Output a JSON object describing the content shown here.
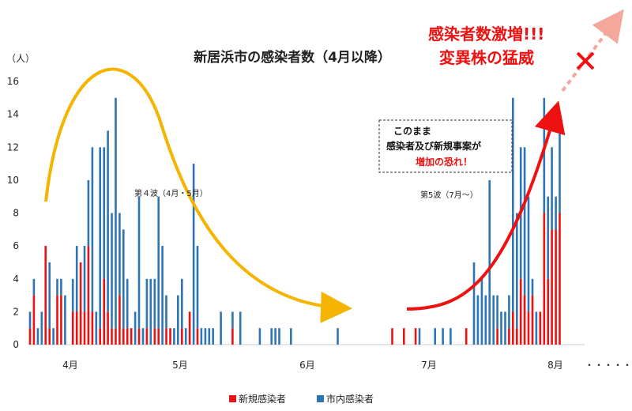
{
  "chart_data": {
    "type": "bar",
    "stacked": true,
    "title": "新居浜市の感染者数（4月以降）",
    "ylabel": "（人）",
    "ylim": [
      0,
      16
    ],
    "yticks": [
      0,
      2,
      4,
      6,
      8,
      10,
      12,
      14,
      16
    ],
    "xticks": [
      "4月",
      "5月",
      "6月",
      "7月",
      "8月"
    ],
    "x_trailing": "・・・・・",
    "grid": false,
    "legend_position": "bottom",
    "series": [
      {
        "name": "新規感染者",
        "color": "#ee1111"
      },
      {
        "name": "市内感染者",
        "color": "#2e75b6"
      }
    ],
    "bars": [
      {
        "x": "4/1",
        "new": 1,
        "city": 1
      },
      {
        "x": "4/2",
        "new": 3,
        "city": 1
      },
      {
        "x": "4/3",
        "new": 0,
        "city": 1
      },
      {
        "x": "4/4",
        "new": 0,
        "city": 2
      },
      {
        "x": "4/5",
        "new": 6,
        "city": 0
      },
      {
        "x": "4/6",
        "new": 1,
        "city": 4
      },
      {
        "x": "4/7",
        "new": 0,
        "city": 1
      },
      {
        "x": "4/8",
        "new": 3,
        "city": 1
      },
      {
        "x": "4/9",
        "new": 3,
        "city": 1
      },
      {
        "x": "4/10",
        "new": 0,
        "city": 3
      },
      {
        "x": "4/11",
        "new": 0,
        "city": 0
      },
      {
        "x": "4/12",
        "new": 2,
        "city": 2
      },
      {
        "x": "4/13",
        "new": 2,
        "city": 4
      },
      {
        "x": "4/14",
        "new": 5,
        "city": 0
      },
      {
        "x": "4/15",
        "new": 2,
        "city": 4
      },
      {
        "x": "4/16",
        "new": 6,
        "city": 4
      },
      {
        "x": "4/17",
        "new": 2,
        "city": 10
      },
      {
        "x": "4/18",
        "new": 0,
        "city": 2
      },
      {
        "x": "4/19",
        "new": 1,
        "city": 11
      },
      {
        "x": "4/20",
        "new": 4,
        "city": 8
      },
      {
        "x": "4/21",
        "new": 2,
        "city": 11
      },
      {
        "x": "4/22",
        "new": 1,
        "city": 7
      },
      {
        "x": "4/23",
        "new": 1,
        "city": 14
      },
      {
        "x": "4/24",
        "new": 3,
        "city": 5
      },
      {
        "x": "4/25",
        "new": 1,
        "city": 6
      },
      {
        "x": "4/26",
        "new": 1,
        "city": 3
      },
      {
        "x": "4/27",
        "new": 1,
        "city": 0
      },
      {
        "x": "4/28",
        "new": 0,
        "city": 2
      },
      {
        "x": "4/29",
        "new": 1,
        "city": 8
      },
      {
        "x": "4/30",
        "new": 0,
        "city": 1
      },
      {
        "x": "5/1",
        "new": 1,
        "city": 3
      },
      {
        "x": "5/2",
        "new": 0,
        "city": 4
      },
      {
        "x": "5/3",
        "new": 1,
        "city": 3
      },
      {
        "x": "5/4",
        "new": 1,
        "city": 8
      },
      {
        "x": "5/5",
        "new": 0,
        "city": 6
      },
      {
        "x": "5/6",
        "new": 1,
        "city": 2
      },
      {
        "x": "5/7",
        "new": 1,
        "city": 0
      },
      {
        "x": "5/8",
        "new": 0,
        "city": 1
      },
      {
        "x": "5/9",
        "new": 0,
        "city": 3
      },
      {
        "x": "5/10",
        "new": 1,
        "city": 3
      },
      {
        "x": "5/11",
        "new": 0,
        "city": 1
      },
      {
        "x": "5/12",
        "new": 2,
        "city": 0
      },
      {
        "x": "5/13",
        "new": 0,
        "city": 11
      },
      {
        "x": "5/14",
        "new": 1,
        "city": 5
      },
      {
        "x": "5/15",
        "new": 0,
        "city": 1
      },
      {
        "x": "5/16",
        "new": 0,
        "city": 1
      },
      {
        "x": "5/17",
        "new": 0,
        "city": 1
      },
      {
        "x": "5/18",
        "new": 0,
        "city": 1
      },
      {
        "x": "5/19",
        "new": 0,
        "city": 0
      },
      {
        "x": "5/20",
        "new": 0,
        "city": 2
      },
      {
        "x": "5/21",
        "new": 0,
        "city": 0
      },
      {
        "x": "5/22",
        "new": 0,
        "city": 0
      },
      {
        "x": "5/23",
        "new": 1,
        "city": 1
      },
      {
        "x": "5/24",
        "new": 0,
        "city": 0
      },
      {
        "x": "5/25",
        "new": 0,
        "city": 2
      },
      {
        "x": "5/26",
        "new": 0,
        "city": 0
      },
      {
        "x": "5/27",
        "new": 0,
        "city": 0
      },
      {
        "x": "5/28",
        "new": 0,
        "city": 0
      },
      {
        "x": "5/29",
        "new": 0,
        "city": 0
      },
      {
        "x": "5/30",
        "new": 0,
        "city": 1
      },
      {
        "x": "5/31",
        "new": 0,
        "city": 0
      },
      {
        "x": "6/1",
        "new": 0,
        "city": 0
      },
      {
        "x": "6/2",
        "new": 0,
        "city": 1
      },
      {
        "x": "6/3",
        "new": 0,
        "city": 1
      },
      {
        "x": "6/4",
        "new": 0,
        "city": 1
      },
      {
        "x": "6/5",
        "new": 0,
        "city": 0
      },
      {
        "x": "6/6",
        "new": 0,
        "city": 0
      },
      {
        "x": "6/7",
        "new": 0,
        "city": 1
      },
      {
        "x": "6/8",
        "new": 0,
        "city": 0
      },
      {
        "x": "6/9",
        "new": 0,
        "city": 0
      },
      {
        "x": "6/10",
        "new": 0,
        "city": 0
      },
      {
        "x": "6/11",
        "new": 0,
        "city": 0
      },
      {
        "x": "6/12",
        "new": 0,
        "city": 0
      },
      {
        "x": "6/13",
        "new": 0,
        "city": 0
      },
      {
        "x": "6/14",
        "new": 0,
        "city": 0
      },
      {
        "x": "6/15",
        "new": 0,
        "city": 0
      },
      {
        "x": "6/16",
        "new": 0,
        "city": 0
      },
      {
        "x": "6/17",
        "new": 0,
        "city": 0
      },
      {
        "x": "6/18",
        "new": 0,
        "city": 0
      },
      {
        "x": "6/19",
        "new": 0,
        "city": 1
      },
      {
        "x": "7/3",
        "new": 1,
        "city": 0
      },
      {
        "x": "7/6",
        "new": 1,
        "city": 0
      },
      {
        "x": "7/9",
        "new": 1,
        "city": 0
      },
      {
        "x": "7/10",
        "new": 0,
        "city": 1
      },
      {
        "x": "7/14",
        "new": 0,
        "city": 1
      },
      {
        "x": "7/16",
        "new": 0,
        "city": 1
      },
      {
        "x": "7/17",
        "new": 0,
        "city": 0
      },
      {
        "x": "7/18",
        "new": 0,
        "city": 1
      },
      {
        "x": "7/20",
        "new": 0,
        "city": 0
      },
      {
        "x": "7/21",
        "new": 0,
        "city": 0
      },
      {
        "x": "7/22",
        "new": 1,
        "city": 0
      },
      {
        "x": "7/23",
        "new": 0,
        "city": 0
      },
      {
        "x": "7/24",
        "new": 0,
        "city": 5
      },
      {
        "x": "7/25",
        "new": 0,
        "city": 3
      },
      {
        "x": "7/26",
        "new": 0,
        "city": 4
      },
      {
        "x": "7/27",
        "new": 0,
        "city": 3
      },
      {
        "x": "7/28",
        "new": 0,
        "city": 10
      },
      {
        "x": "7/29",
        "new": 0,
        "city": 3
      },
      {
        "x": "7/30",
        "new": 1,
        "city": 2
      },
      {
        "x": "7/31",
        "new": 0,
        "city": 2
      },
      {
        "x": "8/1",
        "new": 0,
        "city": 2
      },
      {
        "x": "8/2",
        "new": 1,
        "city": 2
      },
      {
        "x": "8/3",
        "new": 2,
        "city": 13
      },
      {
        "x": "8/4",
        "new": 1,
        "city": 7
      },
      {
        "x": "8/5",
        "new": 4,
        "city": 8
      },
      {
        "x": "8/6",
        "new": 3,
        "city": 9
      },
      {
        "x": "8/7",
        "new": 2,
        "city": 7
      },
      {
        "x": "8/8",
        "new": 3,
        "city": 1
      },
      {
        "x": "8/9",
        "new": 0,
        "city": 2
      },
      {
        "x": "8/10",
        "new": 2,
        "city": 0
      },
      {
        "x": "8/11",
        "new": 8,
        "city": 7
      },
      {
        "x": "8/12",
        "new": 4,
        "city": 5
      },
      {
        "x": "8/13",
        "new": 7,
        "city": 5
      },
      {
        "x": "8/14",
        "new": 7,
        "city": 2
      },
      {
        "x": "8/15",
        "new": 8,
        "city": 6
      }
    ],
    "annotations": {
      "wave4": "第４波（4月・5月）",
      "wave5": "第5波（7月～）",
      "alert_line1": "感染者数激増!!!",
      "alert_line2": "変異株の猛威",
      "box_line1": "このまま",
      "box_line2": "感染者及び新規事案が",
      "box_line3": "増加の恐れ！"
    }
  }
}
